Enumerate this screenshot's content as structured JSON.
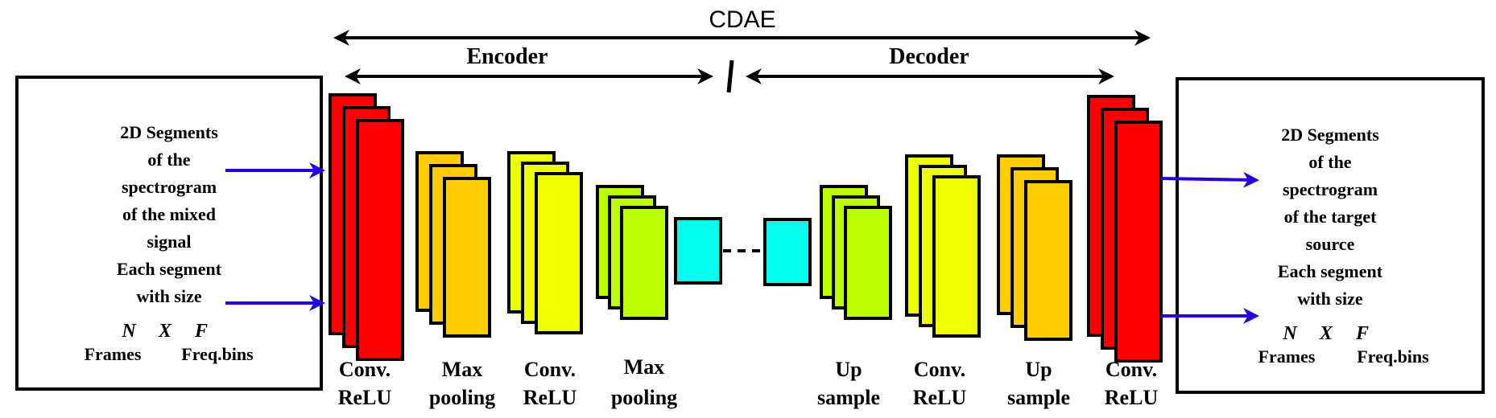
{
  "title": "CDAE",
  "encoder_label": "Encoder",
  "decoder_label": "Decoder",
  "input_box": {
    "lines": [
      "2D Segments",
      "of the",
      "spectrogram",
      "of the mixed",
      "signal",
      "Each segment",
      "with size"
    ],
    "dims": [
      "N",
      "X",
      "F"
    ],
    "units": [
      "Frames",
      "Freq.bins"
    ]
  },
  "output_box": {
    "lines": [
      "2D Segments",
      "of the",
      "spectrogram",
      "of the target",
      "source",
      "Each segment",
      "with size"
    ],
    "dims": [
      "N",
      "X",
      "F"
    ],
    "units": [
      "Frames",
      "Freq.bins"
    ]
  },
  "layers": [
    {
      "line1": "Conv.",
      "line2": "ReLU",
      "color": "#ff0000"
    },
    {
      "line1": "Max",
      "line2": "pooling",
      "color": "#ffcc00"
    },
    {
      "line1": "Conv.",
      "line2": "ReLU",
      "color": "#eeff00"
    },
    {
      "line1": "Max",
      "line2": "pooling",
      "color": "#bbff00"
    },
    {
      "line1": "",
      "line2": "",
      "color": "#00ffee"
    },
    {
      "line1": "",
      "line2": "",
      "color": "#00ffee"
    },
    {
      "line1": "Up",
      "line2": "sample",
      "color": "#bbff00"
    },
    {
      "line1": "Conv.",
      "line2": "ReLU",
      "color": "#eeff00"
    },
    {
      "line1": "Up",
      "line2": "sample",
      "color": "#ffcc00"
    },
    {
      "line1": "Conv.",
      "line2": "ReLU",
      "color": "#ff0000"
    }
  ],
  "colors": {
    "arrow_blue": "#2200ee",
    "stroke": "#000000"
  }
}
